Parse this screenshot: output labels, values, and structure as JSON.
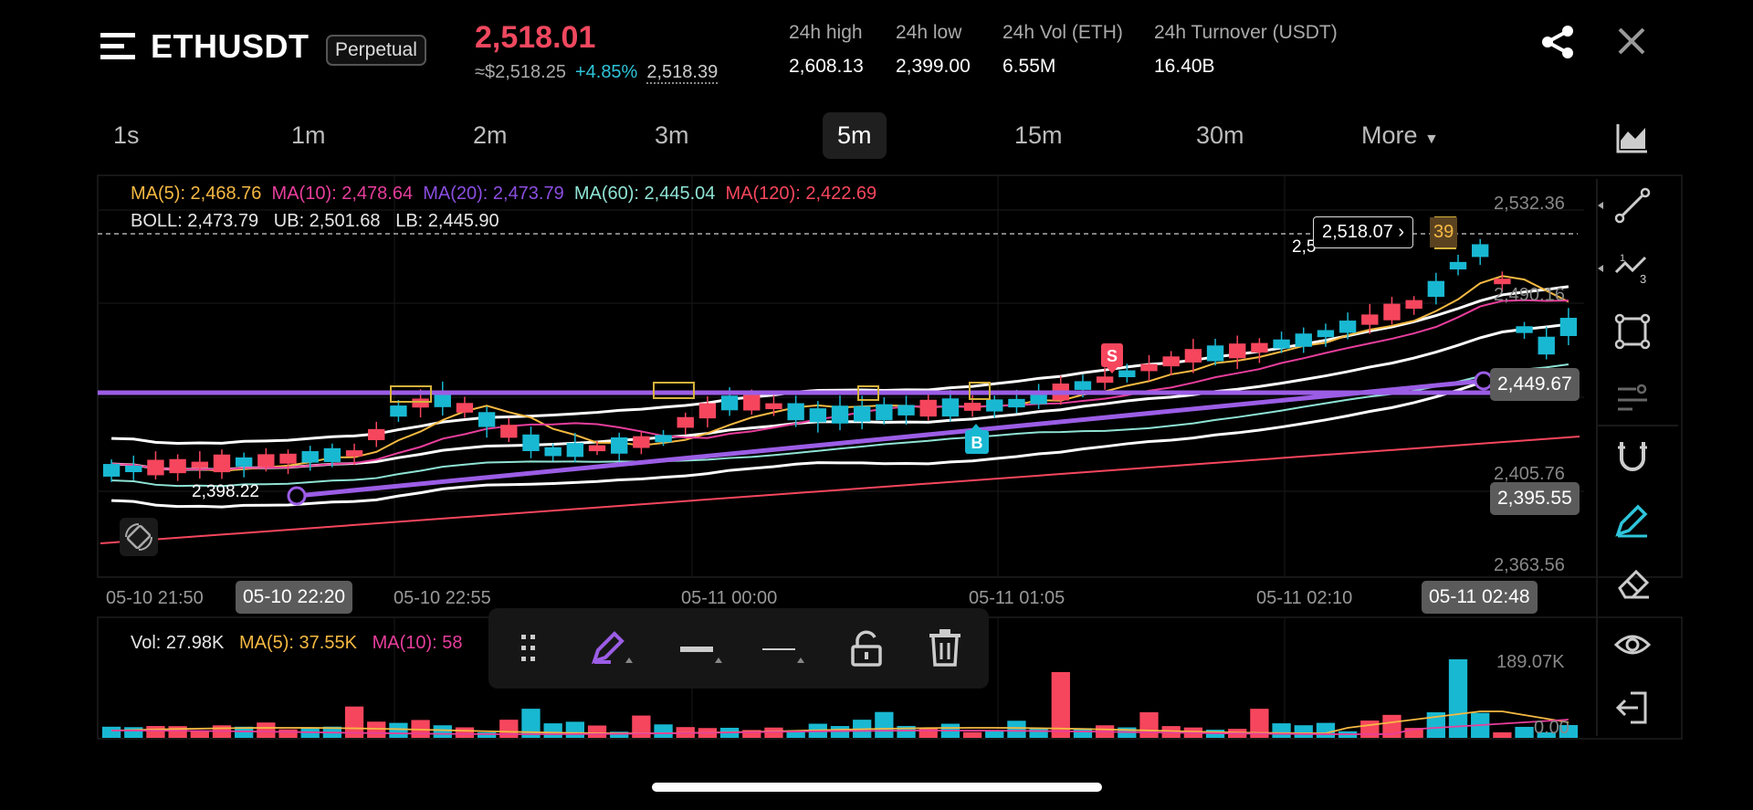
{
  "header": {
    "symbol": "ETHUSDT",
    "contract_type": "Perpetual",
    "last_price": "2,518.01",
    "usd_price": "≈$2,518.25",
    "change_pct": "+4.85%",
    "mark_price": "2,518.39",
    "stats": [
      {
        "label": "24h high",
        "value": "2,608.13"
      },
      {
        "label": "24h low",
        "value": "2,399.00"
      },
      {
        "label": "24h Vol (ETH)",
        "value": "6.55M"
      },
      {
        "label": "24h Turnover (USDT)",
        "value": "16.40B"
      }
    ]
  },
  "timeframes": [
    "1s",
    "1m",
    "2m",
    "3m",
    "5m",
    "15m",
    "30m",
    "More"
  ],
  "selected_timeframe": "5m",
  "legend": {
    "ma5": "MA(5): 2,468.76",
    "ma10": "MA(10): 2,478.64",
    "ma20": "MA(20): 2,473.79",
    "ma60": "MA(60): 2,445.04",
    "ma120": "MA(120): 2,422.69",
    "boll": "BOLL: 2,473.79",
    "ub": "UB: 2,501.68",
    "lb": "LB: 2,445.90"
  },
  "price_axis": [
    "2,532.36",
    "2,490.16",
    "2,405.76",
    "2,363.56"
  ],
  "price_tags": {
    "current": "2,518.07",
    "current_partial": "39",
    "left_partial": "2,5",
    "line_a": "2,449.67",
    "line_b": "2,395.55",
    "line_left": "2,398.22"
  },
  "time_axis": [
    "05-10 21:50",
    "05-10 22:55",
    "05-11 00:00",
    "05-11 01:05",
    "05-11 02:10"
  ],
  "time_pills": [
    "05-10 22:20",
    "05-11 02:48"
  ],
  "markers": {
    "sell": "S",
    "buy": "B"
  },
  "volume": {
    "vol": "Vol: 27.98K",
    "ma5": "MA(5): 37.55K",
    "ma10": "MA(10): 58",
    "axis_top": "189.07K",
    "axis_bottom": "0.00"
  },
  "colors": {
    "up": "#19b8d2",
    "down": "#f6465d",
    "ma5": "#f5b942",
    "ma10": "#e83e9c",
    "ma20": "#8b4ee0",
    "ma60": "#8fe3d4",
    "ma120": "#f6465d",
    "boll": "#ffffff",
    "drawn_line": "#9b5de5",
    "accent": "#2ec5da"
  },
  "icons": {
    "side": [
      "trend-line-icon",
      "fib-icon",
      "rectangle-icon",
      "settings-lines-icon",
      "magnet-icon",
      "pencil-icon",
      "eraser-icon",
      "eye-icon",
      "exit-icon"
    ],
    "drawing_toolbar": [
      "drag-handle-icon",
      "pencil-color-icon",
      "line-width-icon",
      "line-style-icon",
      "lock-icon",
      "trash-icon"
    ]
  }
}
